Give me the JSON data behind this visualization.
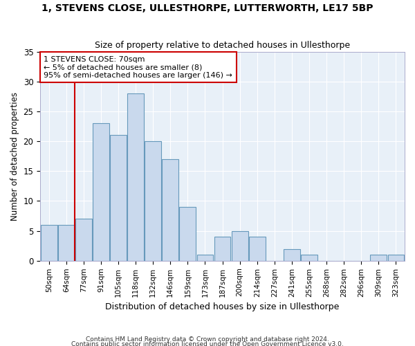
{
  "title": "1, STEVENS CLOSE, ULLESTHORPE, LUTTERWORTH, LE17 5BP",
  "subtitle": "Size of property relative to detached houses in Ullesthorpe",
  "xlabel": "Distribution of detached houses by size in Ullesthorpe",
  "ylabel": "Number of detached properties",
  "bar_labels": [
    "50sqm",
    "64sqm",
    "77sqm",
    "91sqm",
    "105sqm",
    "118sqm",
    "132sqm",
    "146sqm",
    "159sqm",
    "173sqm",
    "187sqm",
    "200sqm",
    "214sqm",
    "227sqm",
    "241sqm",
    "255sqm",
    "268sqm",
    "282sqm",
    "296sqm",
    "309sqm",
    "323sqm"
  ],
  "bar_values": [
    6,
    6,
    7,
    23,
    21,
    28,
    20,
    17,
    9,
    1,
    4,
    5,
    4,
    0,
    2,
    1,
    0,
    0,
    0,
    1,
    1
  ],
  "bar_color": "#c9d9ed",
  "bar_edge_color": "#6699bb",
  "vline_x": 1.5,
  "vline_color": "#cc0000",
  "annotation_text": "1 STEVENS CLOSE: 70sqm\n← 5% of detached houses are smaller (8)\n95% of semi-detached houses are larger (146) →",
  "annotation_box_facecolor": "#ffffff",
  "annotation_box_edgecolor": "#cc0000",
  "fig_bg_color": "#ffffff",
  "plot_bg_color": "#e8f0f8",
  "grid_color": "#ffffff",
  "footer1": "Contains HM Land Registry data © Crown copyright and database right 2024.",
  "footer2": "Contains public sector information licensed under the Open Government Licence v3.0.",
  "ylim": [
    0,
    35
  ],
  "yticks": [
    0,
    5,
    10,
    15,
    20,
    25,
    30,
    35
  ]
}
